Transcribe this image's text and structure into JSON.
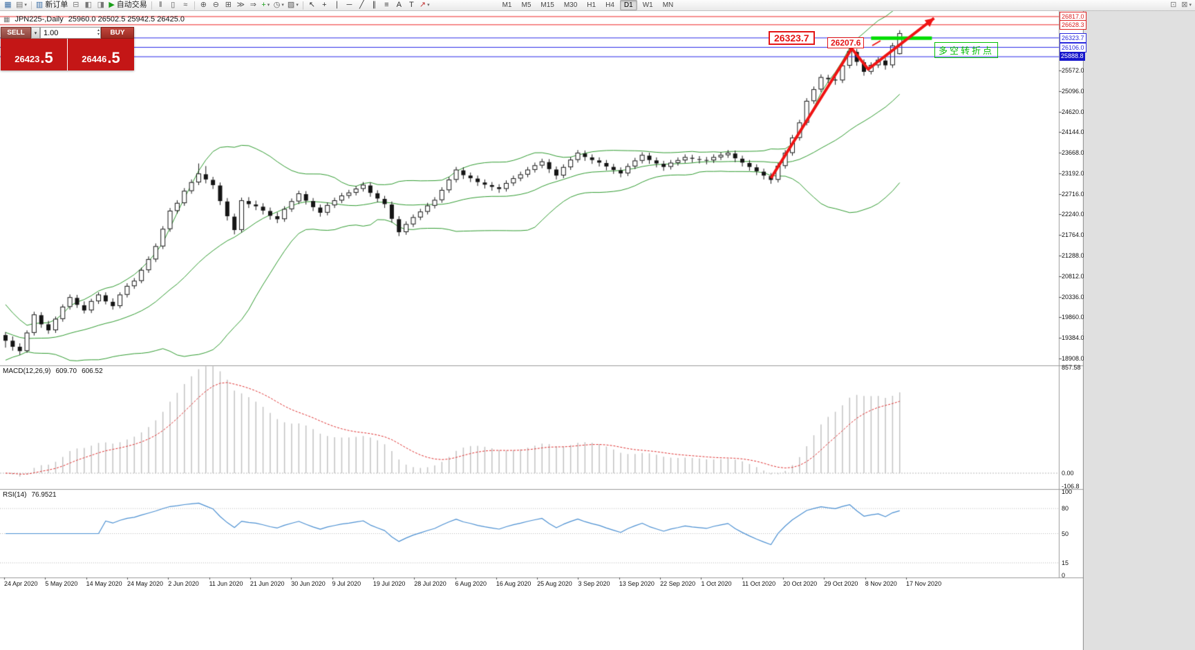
{
  "toolbar": {
    "items": [
      {
        "t": "icon",
        "n": "new-chart-icon",
        "g": "▦",
        "c": "#3b6ea5"
      },
      {
        "t": "dd",
        "n": "profiles-icon",
        "g": "▤",
        "c": "#777777"
      },
      {
        "t": "sep"
      },
      {
        "t": "btn",
        "n": "new-order-button",
        "g": "▥",
        "c": "#3b6ea5",
        "label": "新订单"
      },
      {
        "t": "icon",
        "n": "market-watch-icon",
        "g": "⊟",
        "c": "#777777"
      },
      {
        "t": "icon",
        "n": "data-window-icon",
        "g": "◧",
        "c": "#777777"
      },
      {
        "t": "icon",
        "n": "navigator-icon",
        "g": "◨",
        "c": "#777777"
      },
      {
        "t": "btn",
        "n": "autotrading-button",
        "g": "▶",
        "c": "#1a9e1a",
        "label": "自动交易"
      },
      {
        "t": "sep"
      },
      {
        "t": "icon",
        "n": "bar-chart-icon",
        "g": "‖",
        "c": "#555555"
      },
      {
        "t": "icon",
        "n": "candlestick-chart-icon",
        "g": "▯",
        "c": "#555555"
      },
      {
        "t": "icon",
        "n": "line-chart-icon",
        "g": "≈",
        "c": "#555555"
      },
      {
        "t": "sep"
      },
      {
        "t": "icon",
        "n": "zoom-in-icon",
        "g": "⊕",
        "c": "#555555"
      },
      {
        "t": "icon",
        "n": "zoom-out-icon",
        "g": "⊖",
        "c": "#555555"
      },
      {
        "t": "icon",
        "n": "tile-windows-icon",
        "g": "⊞",
        "c": "#555555"
      },
      {
        "t": "icon",
        "n": "auto-scroll-icon",
        "g": "≫",
        "c": "#555555"
      },
      {
        "t": "icon",
        "n": "chart-shift-icon",
        "g": "⇒",
        "c": "#555555"
      },
      {
        "t": "dd",
        "n": "indicators-icon",
        "g": "+",
        "c": "#1a9e1a"
      },
      {
        "t": "dd",
        "n": "periods-icon",
        "g": "◷",
        "c": "#555555"
      },
      {
        "t": "dd",
        "n": "templates-icon",
        "g": "▨",
        "c": "#555555"
      },
      {
        "t": "sep"
      },
      {
        "t": "icon",
        "n": "cursor-icon",
        "g": "↖",
        "c": "#333333"
      },
      {
        "t": "icon",
        "n": "crosshair-icon",
        "g": "+",
        "c": "#333333"
      },
      {
        "t": "icon",
        "n": "vertical-line-icon",
        "g": "∣",
        "c": "#333333"
      },
      {
        "t": "icon",
        "n": "horizontal-line-icon",
        "g": "─",
        "c": "#333333"
      },
      {
        "t": "icon",
        "n": "trendline-icon",
        "g": "╱",
        "c": "#333333"
      },
      {
        "t": "icon",
        "n": "channel-icon",
        "g": "∥",
        "c": "#333333"
      },
      {
        "t": "icon",
        "n": "fibonacci-icon",
        "g": "≡",
        "c": "#333333"
      },
      {
        "t": "icon",
        "n": "text-icon",
        "g": "A",
        "c": "#333333"
      },
      {
        "t": "icon",
        "n": "label-icon",
        "g": "T",
        "c": "#333333"
      },
      {
        "t": "dd",
        "n": "arrows-icon",
        "g": "↗",
        "c": "#c03030"
      },
      {
        "t": "tf"
      },
      {
        "t": "spacer"
      },
      {
        "t": "icon",
        "n": "chart-list-icon",
        "g": "⊡",
        "c": "#777777"
      },
      {
        "t": "dd",
        "n": "more-tools-icon",
        "g": "⊠",
        "c": "#777777"
      }
    ],
    "timeframes": [
      "M1",
      "M5",
      "M15",
      "M30",
      "H1",
      "H4",
      "D1",
      "W1",
      "MN"
    ],
    "active_timeframe": "D1"
  },
  "chart_header": {
    "symbol_period": "JPN225-,Daily",
    "ohlc": "25960.0 26502.5 25942.5 26425.0"
  },
  "one_click": {
    "sell_label": "SELL",
    "buy_label": "BUY",
    "lot": "1.00",
    "bid": "26423.5",
    "ask": "26446.5",
    "bid_main": "26423",
    "bid_pips": ".5",
    "ask_main": "26446",
    "ask_pips": ".5"
  },
  "price_axis": {
    "tags": [
      {
        "text": "26817.0",
        "value": 26817.0,
        "color": "#dd2020",
        "style": "outline"
      },
      {
        "text": "26628.3",
        "value": 26628.3,
        "color": "#dd2020",
        "style": "outline"
      },
      {
        "text": "26323.7",
        "value": 26323.7,
        "color": "#2828dd",
        "style": "outline"
      },
      {
        "text": "26106.0",
        "value": 26106.0,
        "color": "#2828dd",
        "style": "outline"
      },
      {
        "text": "25888.8",
        "value": 25888.8,
        "color": "#1616cc",
        "style": "solid"
      }
    ],
    "ticks": [
      "25572.0",
      "25096.0",
      "24620.0",
      "24144.0",
      "23668.0",
      "23192.0",
      "22716.0",
      "22240.0",
      "21764.0",
      "21288.0",
      "20812.0",
      "20336.0",
      "19860.0",
      "19384.0",
      "18908.0"
    ]
  },
  "macd_panel": {
    "name": "MACD(12,26,9)",
    "value_main": "609.70",
    "value_signal": "606.52",
    "axis": [
      "857.58",
      "0.00",
      "-106.8"
    ],
    "axis_values": [
      857.58,
      0,
      -106.8
    ]
  },
  "rsi_panel": {
    "name": "RSI(14)",
    "value": "76.9521",
    "axis": [
      "100",
      "80",
      "50",
      "15",
      "0"
    ],
    "axis_values": [
      100,
      80,
      50,
      15,
      0
    ],
    "levels": [
      80,
      50,
      15
    ]
  },
  "date_axis": [
    "24 Apr 2020",
    "5 May 2020",
    "14 May 2020",
    "24 May 2020",
    "2 Jun 2020",
    "11 Jun 2020",
    "21 Jun 2020",
    "30 Jun 2020",
    "9 Jul 2020",
    "19 Jul 2020",
    "28 Jul 2020",
    "6 Aug 2020",
    "16 Aug 2020",
    "25 Aug 2020",
    "3 Sep 2020",
    "13 Sep 2020",
    "22 Sep 2020",
    "1 Oct 2020",
    "11 Oct 2020",
    "20 Oct 2020",
    "29 Oct 2020",
    "8 Nov 2020",
    "17 Nov 2020"
  ],
  "annotations": {
    "callout1": "26323.7",
    "callout2": "26207.6",
    "pivot_text": "多空转折点",
    "hlines": [
      {
        "price": 26817.0,
        "color": "#ee2222",
        "width": 1
      },
      {
        "price": 26628.3,
        "color": "#ee2222",
        "width": 1
      },
      {
        "price": 26323.7,
        "color": "#2828e8",
        "width": 1
      },
      {
        "price": 26106.0,
        "color": "#2828e8",
        "width": 1
      },
      {
        "price": 25888.8,
        "color": "#2828e8",
        "width": 1
      }
    ],
    "green_segment": {
      "from_bar": 121,
      "to_bar": 129.5,
      "price": 26320,
      "color": "#00dd00",
      "width": 5
    },
    "trend_arrow": {
      "color": "#f01414",
      "width": 4,
      "points": [
        {
          "bar": 107,
          "price": 23080
        },
        {
          "bar": 118.3,
          "price": 26080
        },
        {
          "bar": 120.6,
          "price": 25600
        },
        {
          "bar": 129.8,
          "price": 26780
        }
      ]
    }
  },
  "colors": {
    "candle_up": "#ffffff",
    "candle_down": "#151515",
    "candle_outline": "#151515",
    "bands": "#2E9B2E",
    "macd_hist": "#c2c2c2",
    "macd_signal": "#e03030",
    "rsi_line": "#4a8fd2",
    "separator": "#9a9a9a"
  },
  "chart_data": {
    "type": "candlestick",
    "symbol": "JPN225-",
    "timeframe": "Daily",
    "current_bar": {
      "open": 25960.0,
      "high": 26502.5,
      "low": 25942.5,
      "close": 26425.0
    },
    "bid": 26423.5,
    "ask": 26446.5,
    "price_axis_range": [
      18908.0,
      26945.0
    ],
    "indicators": {
      "bollinger": {
        "period": 20,
        "deviation": 2,
        "color": "#2E9B2E"
      },
      "macd": {
        "label": "MACD(12,26,9)",
        "main": 609.7,
        "signal": 606.52,
        "scale_max": 857.58,
        "scale_min": -106.8
      },
      "rsi": {
        "label": "RSI(14)",
        "value": 76.9521,
        "levels": [
          80,
          50,
          15
        ]
      }
    },
    "pre_history_closes": [
      20600,
      20400,
      20200,
      20000,
      19800,
      19650,
      19500,
      19400,
      19350,
      19300,
      19280,
      19260,
      19280,
      19300,
      19320,
      19340,
      19360,
      19380,
      19400,
      19420
    ],
    "candles": [
      [
        19450,
        19520,
        19160,
        19320
      ],
      [
        19320,
        19420,
        19090,
        19180
      ],
      [
        19180,
        19260,
        18990,
        19080
      ],
      [
        19090,
        19560,
        19040,
        19500
      ],
      [
        19510,
        19990,
        19440,
        19920
      ],
      [
        19910,
        19980,
        19620,
        19700
      ],
      [
        19700,
        19780,
        19480,
        19560
      ],
      [
        19570,
        19880,
        19500,
        19820
      ],
      [
        19830,
        20160,
        19760,
        20100
      ],
      [
        20110,
        20390,
        20040,
        20320
      ],
      [
        20310,
        20380,
        20080,
        20150
      ],
      [
        20140,
        20230,
        19950,
        20020
      ],
      [
        20030,
        20290,
        19960,
        20230
      ],
      [
        20240,
        20440,
        20170,
        20380
      ],
      [
        20370,
        20440,
        20160,
        20230
      ],
      [
        20220,
        20300,
        20040,
        20120
      ],
      [
        20130,
        20440,
        20070,
        20380
      ],
      [
        20390,
        20650,
        20320,
        20580
      ],
      [
        20590,
        20770,
        20520,
        20700
      ],
      [
        20710,
        21010,
        20650,
        20950
      ],
      [
        20960,
        21270,
        20890,
        21200
      ],
      [
        21210,
        21570,
        21140,
        21500
      ],
      [
        21510,
        21970,
        21440,
        21900
      ],
      [
        21910,
        22390,
        21840,
        22320
      ],
      [
        22330,
        22570,
        22260,
        22500
      ],
      [
        22510,
        22850,
        22440,
        22780
      ],
      [
        22790,
        23050,
        22720,
        22980
      ],
      [
        22990,
        23420,
        22920,
        23180
      ],
      [
        23170,
        23360,
        22960,
        23050
      ],
      [
        23040,
        23110,
        22830,
        22920
      ],
      [
        22910,
        22980,
        22460,
        22550
      ],
      [
        22540,
        22620,
        22100,
        22200
      ],
      [
        22190,
        22260,
        21780,
        21880
      ],
      [
        21890,
        22630,
        21820,
        22560
      ],
      [
        22550,
        22640,
        22390,
        22480
      ],
      [
        22470,
        22560,
        22340,
        22430
      ],
      [
        22420,
        22500,
        22240,
        22330
      ],
      [
        22320,
        22400,
        22120,
        22210
      ],
      [
        22200,
        22290,
        22040,
        22130
      ],
      [
        22140,
        22430,
        22070,
        22360
      ],
      [
        22370,
        22610,
        22300,
        22540
      ],
      [
        22550,
        22790,
        22480,
        22720
      ],
      [
        22710,
        22780,
        22470,
        22560
      ],
      [
        22550,
        22620,
        22320,
        22410
      ],
      [
        22400,
        22470,
        22190,
        22280
      ],
      [
        22290,
        22520,
        22220,
        22450
      ],
      [
        22460,
        22630,
        22390,
        22560
      ],
      [
        22570,
        22740,
        22500,
        22670
      ],
      [
        22680,
        22810,
        22610,
        22740
      ],
      [
        22750,
        22900,
        22680,
        22830
      ],
      [
        22840,
        22990,
        22770,
        22920
      ],
      [
        22910,
        22980,
        22650,
        22740
      ],
      [
        22730,
        22800,
        22520,
        22610
      ],
      [
        22600,
        22670,
        22390,
        22480
      ],
      [
        22470,
        22540,
        22050,
        22140
      ],
      [
        22130,
        22200,
        21740,
        21830
      ],
      [
        21840,
        22080,
        21770,
        22010
      ],
      [
        22020,
        22240,
        21950,
        22170
      ],
      [
        22180,
        22370,
        22110,
        22300
      ],
      [
        22310,
        22510,
        22240,
        22440
      ],
      [
        22450,
        22640,
        22380,
        22570
      ],
      [
        22580,
        22870,
        22510,
        22800
      ],
      [
        22810,
        23110,
        22740,
        23040
      ],
      [
        23050,
        23340,
        22980,
        23270
      ],
      [
        23260,
        23330,
        23060,
        23150
      ],
      [
        23140,
        23210,
        22990,
        23080
      ],
      [
        23070,
        23140,
        22900,
        22990
      ],
      [
        22980,
        23050,
        22840,
        22930
      ],
      [
        22920,
        22990,
        22790,
        22880
      ],
      [
        22870,
        22940,
        22740,
        22830
      ],
      [
        22840,
        23030,
        22770,
        22960
      ],
      [
        22970,
        23140,
        22900,
        23070
      ],
      [
        23080,
        23230,
        23010,
        23160
      ],
      [
        23170,
        23340,
        23100,
        23270
      ],
      [
        23280,
        23440,
        23210,
        23370
      ],
      [
        23380,
        23530,
        23310,
        23460
      ],
      [
        23450,
        23520,
        23200,
        23290
      ],
      [
        23280,
        23350,
        23050,
        23140
      ],
      [
        23150,
        23400,
        23080,
        23330
      ],
      [
        23340,
        23570,
        23270,
        23500
      ],
      [
        23510,
        23730,
        23440,
        23660
      ],
      [
        23650,
        23720,
        23480,
        23570
      ],
      [
        23560,
        23630,
        23410,
        23500
      ],
      [
        23490,
        23560,
        23350,
        23440
      ],
      [
        23430,
        23500,
        23260,
        23350
      ],
      [
        23340,
        23410,
        23180,
        23270
      ],
      [
        23260,
        23330,
        23100,
        23190
      ],
      [
        23200,
        23420,
        23130,
        23350
      ],
      [
        23360,
        23550,
        23290,
        23480
      ],
      [
        23490,
        23680,
        23420,
        23610
      ],
      [
        23600,
        23670,
        23410,
        23500
      ],
      [
        23490,
        23560,
        23330,
        23420
      ],
      [
        23410,
        23480,
        23250,
        23340
      ],
      [
        23350,
        23500,
        23280,
        23430
      ],
      [
        23440,
        23560,
        23370,
        23490
      ],
      [
        23500,
        23630,
        23430,
        23560
      ],
      [
        23550,
        23620,
        23440,
        23530
      ],
      [
        23520,
        23590,
        23420,
        23510
      ],
      [
        23500,
        23570,
        23400,
        23490
      ],
      [
        23500,
        23630,
        23430,
        23560
      ],
      [
        23570,
        23680,
        23500,
        23610
      ],
      [
        23620,
        23730,
        23550,
        23660
      ],
      [
        23650,
        23720,
        23450,
        23540
      ],
      [
        23530,
        23600,
        23350,
        23440
      ],
      [
        23430,
        23500,
        23250,
        23340
      ],
      [
        23330,
        23400,
        23150,
        23240
      ],
      [
        23230,
        23300,
        23050,
        23140
      ],
      [
        23130,
        23200,
        22950,
        23040
      ],
      [
        23050,
        23430,
        22980,
        23360
      ],
      [
        23370,
        23730,
        23300,
        23660
      ],
      [
        23670,
        24080,
        23600,
        24010
      ],
      [
        24020,
        24430,
        23950,
        24360
      ],
      [
        24370,
        24930,
        24300,
        24860
      ],
      [
        24870,
        25200,
        24800,
        25130
      ],
      [
        25140,
        25480,
        25070,
        25410
      ],
      [
        25400,
        25470,
        25280,
        25370
      ],
      [
        25360,
        25430,
        25240,
        25340
      ],
      [
        25350,
        25750,
        25280,
        25680
      ],
      [
        25690,
        26180,
        25620,
        26010
      ],
      [
        26000,
        26070,
        25680,
        25770
      ],
      [
        25760,
        25830,
        25450,
        25540
      ],
      [
        25550,
        25760,
        25480,
        25690
      ],
      [
        25700,
        25880,
        25630,
        25810
      ],
      [
        25800,
        25870,
        25590,
        25690
      ],
      [
        25700,
        26210,
        25630,
        26140
      ],
      [
        25960,
        26502.5,
        25942.5,
        26425
      ]
    ]
  }
}
